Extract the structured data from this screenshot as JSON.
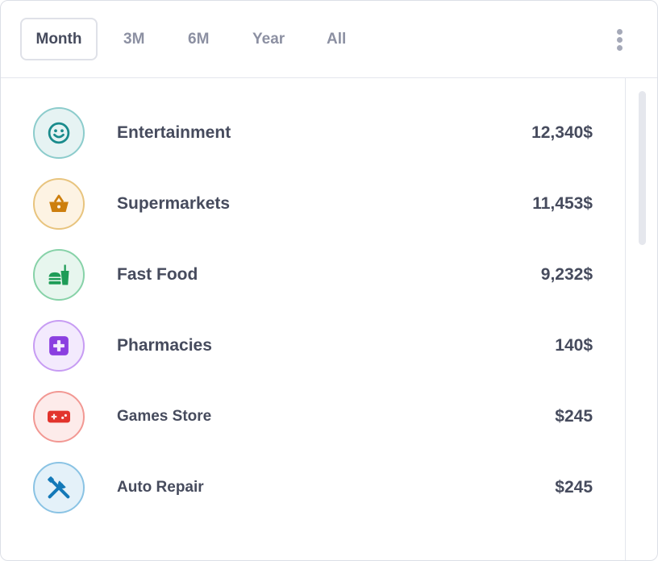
{
  "tabs": [
    {
      "label": "Month",
      "active": true
    },
    {
      "label": "3M",
      "active": false
    },
    {
      "label": "6M",
      "active": false
    },
    {
      "label": "Year",
      "active": false
    },
    {
      "label": "All",
      "active": false
    }
  ],
  "menu_icon": "more-vertical-icon",
  "categories": [
    {
      "label": "Entertainment",
      "amount": "12,340$",
      "icon": "smile-icon",
      "color": "#1a8b8c",
      "bg": "#e6f3f3",
      "border": "#8ccccc"
    },
    {
      "label": "Supermarkets",
      "amount": "11,453$",
      "icon": "basket-icon",
      "color": "#cd7f0e",
      "bg": "#fdf3e3",
      "border": "#e8c47e"
    },
    {
      "label": "Fast Food",
      "amount": "9,232$",
      "icon": "fast-food-icon",
      "color": "#1e9c57",
      "bg": "#e7f6ee",
      "border": "#87d2a8"
    },
    {
      "label": "Pharmacies",
      "amount": "140$",
      "icon": "medical-plus-icon",
      "color": "#8b3fe0",
      "bg": "#f3eafd",
      "border": "#c79cf3"
    },
    {
      "label": "Games Store",
      "amount": "$245",
      "icon": "gamepad-icon",
      "color": "#e2342d",
      "bg": "#fdebea",
      "border": "#f29893"
    },
    {
      "label": "Auto Repair",
      "amount": "$245",
      "icon": "tools-icon",
      "color": "#1479b8",
      "bg": "#e4f1f9",
      "border": "#8ac3e4"
    }
  ]
}
